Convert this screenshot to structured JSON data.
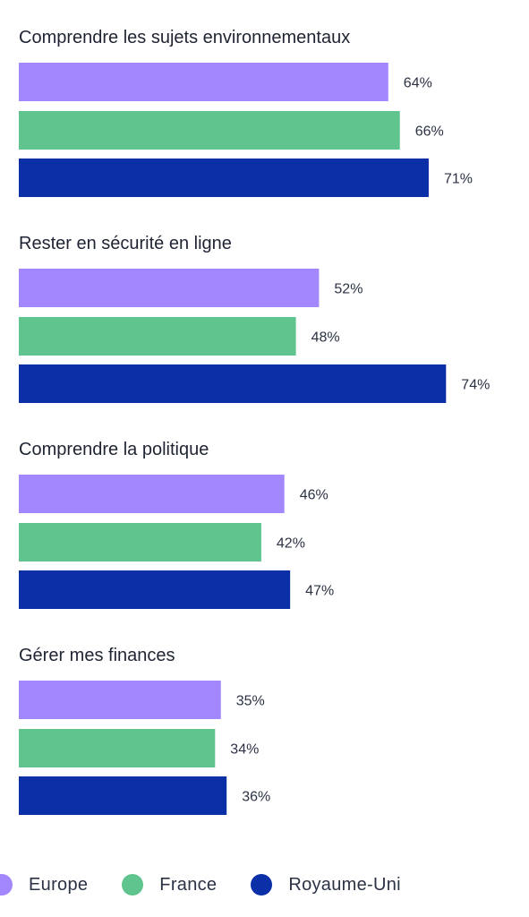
{
  "chart_data": {
    "type": "bar",
    "orientation": "horizontal",
    "categories": [
      "Comprendre les sujets environnementaux",
      "Rester en sécurité en ligne",
      "Comprendre la politique",
      "Gérer mes finances"
    ],
    "series": [
      {
        "name": "Europe",
        "color": "#a387ff",
        "values": [
          64,
          52,
          46,
          35
        ]
      },
      {
        "name": "France",
        "color": "#5fc48d",
        "values": [
          66,
          48,
          42,
          34
        ]
      },
      {
        "name": "Royaume-Uni",
        "color": "#0a2fa6",
        "values": [
          71,
          74,
          47,
          36
        ]
      }
    ],
    "value_suffix": "%",
    "xlim": [
      0,
      100
    ],
    "grid": false,
    "legend_placement": "bottom"
  }
}
